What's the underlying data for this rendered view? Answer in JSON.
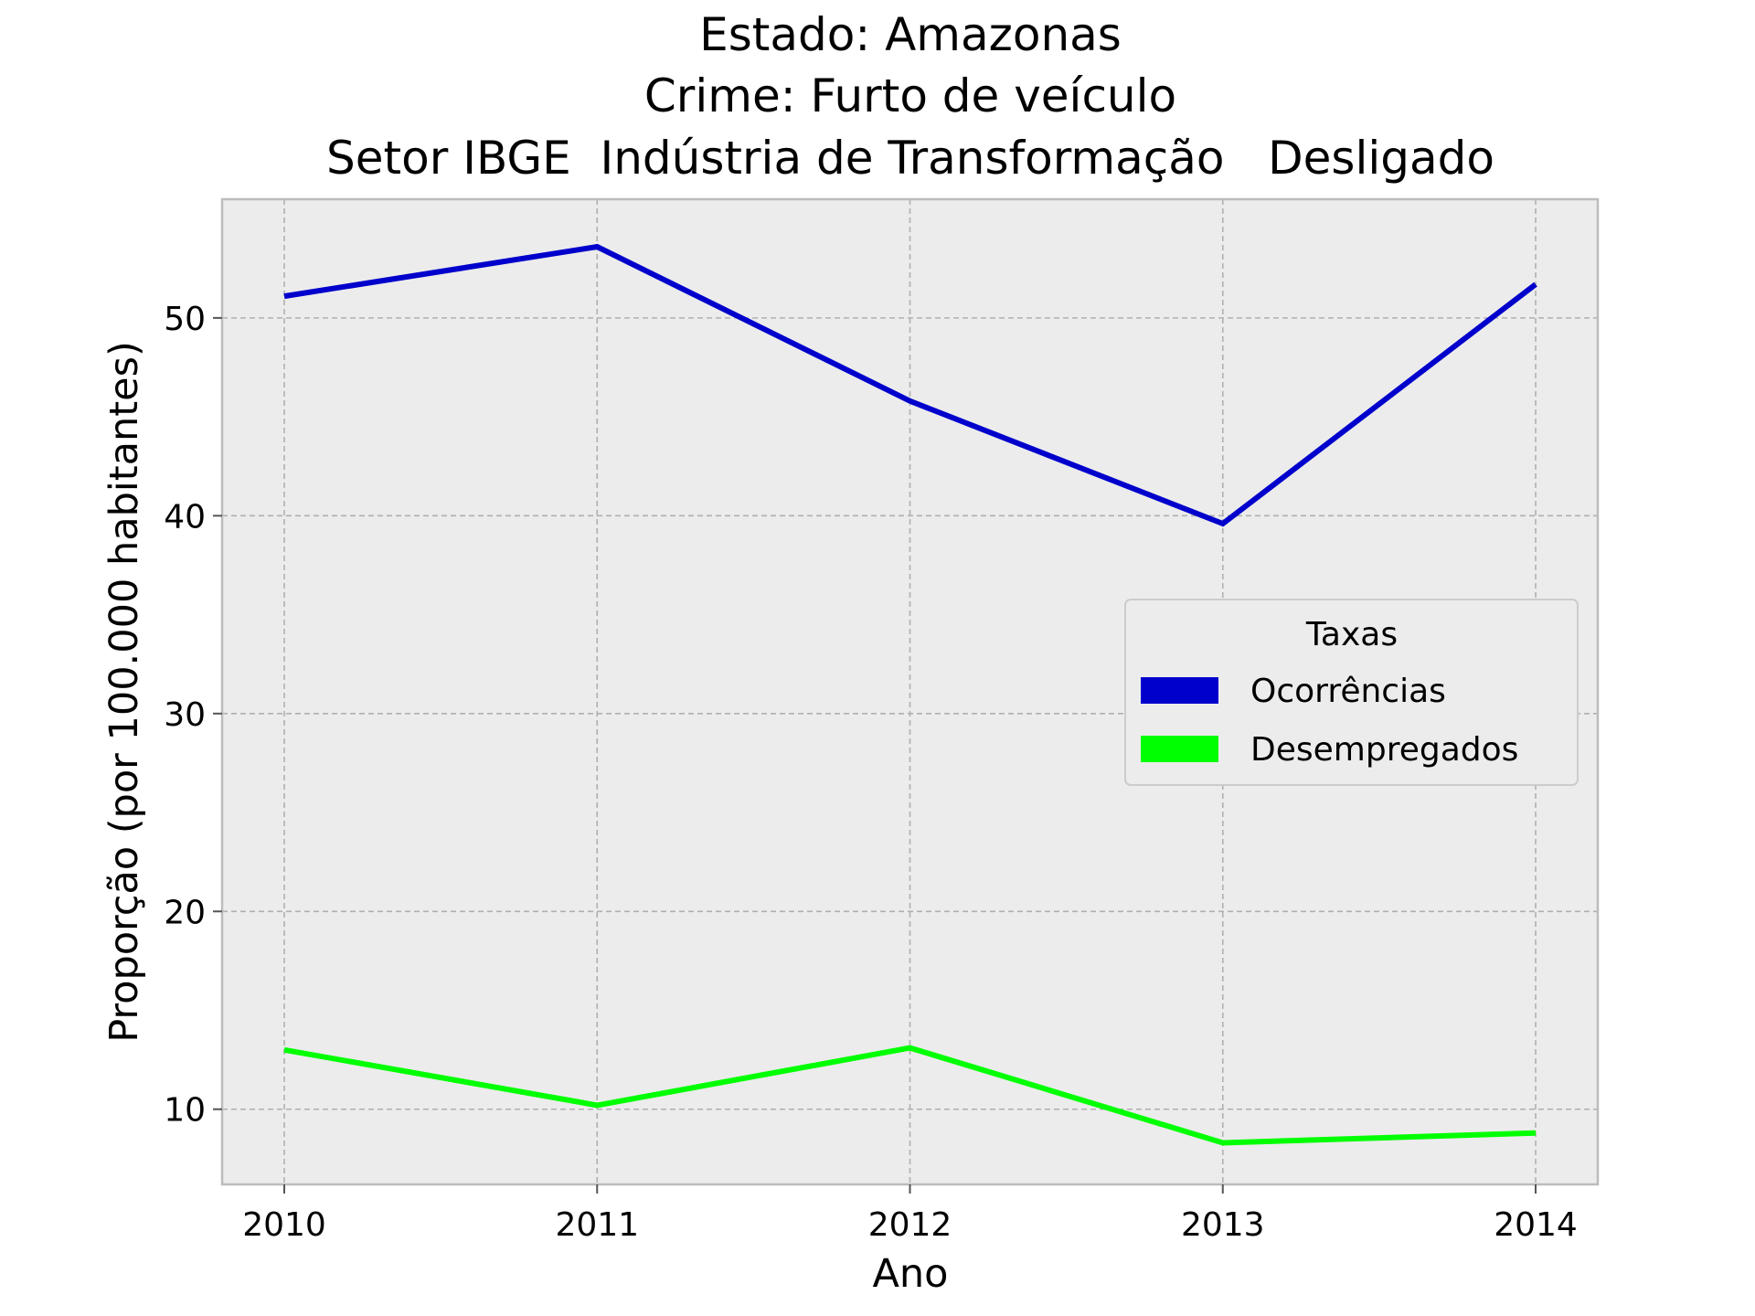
{
  "chart_data": {
    "type": "line",
    "title_lines": [
      "Estado: Amazonas",
      "Crime: Furto de veículo",
      "Setor IBGE  Indústria de Transformação   Desligado"
    ],
    "xlabel": "Ano",
    "ylabel": "Proporção (por 100.000 habitantes)",
    "categories": [
      "2010",
      "2011",
      "2012",
      "2013",
      "2014"
    ],
    "yticks": [
      10,
      20,
      30,
      40,
      50
    ],
    "ylim": [
      6.2,
      56.0
    ],
    "grid": true,
    "legend": {
      "title": "Taxas",
      "placement": "center-right"
    },
    "series": [
      {
        "name": "Ocorrências",
        "color": "#0000cc",
        "values": [
          51.1,
          53.6,
          45.8,
          39.6,
          51.7
        ]
      },
      {
        "name": "Desempregados",
        "color": "#00ff00",
        "values": [
          13.0,
          10.2,
          13.1,
          8.3,
          8.8
        ]
      }
    ]
  }
}
